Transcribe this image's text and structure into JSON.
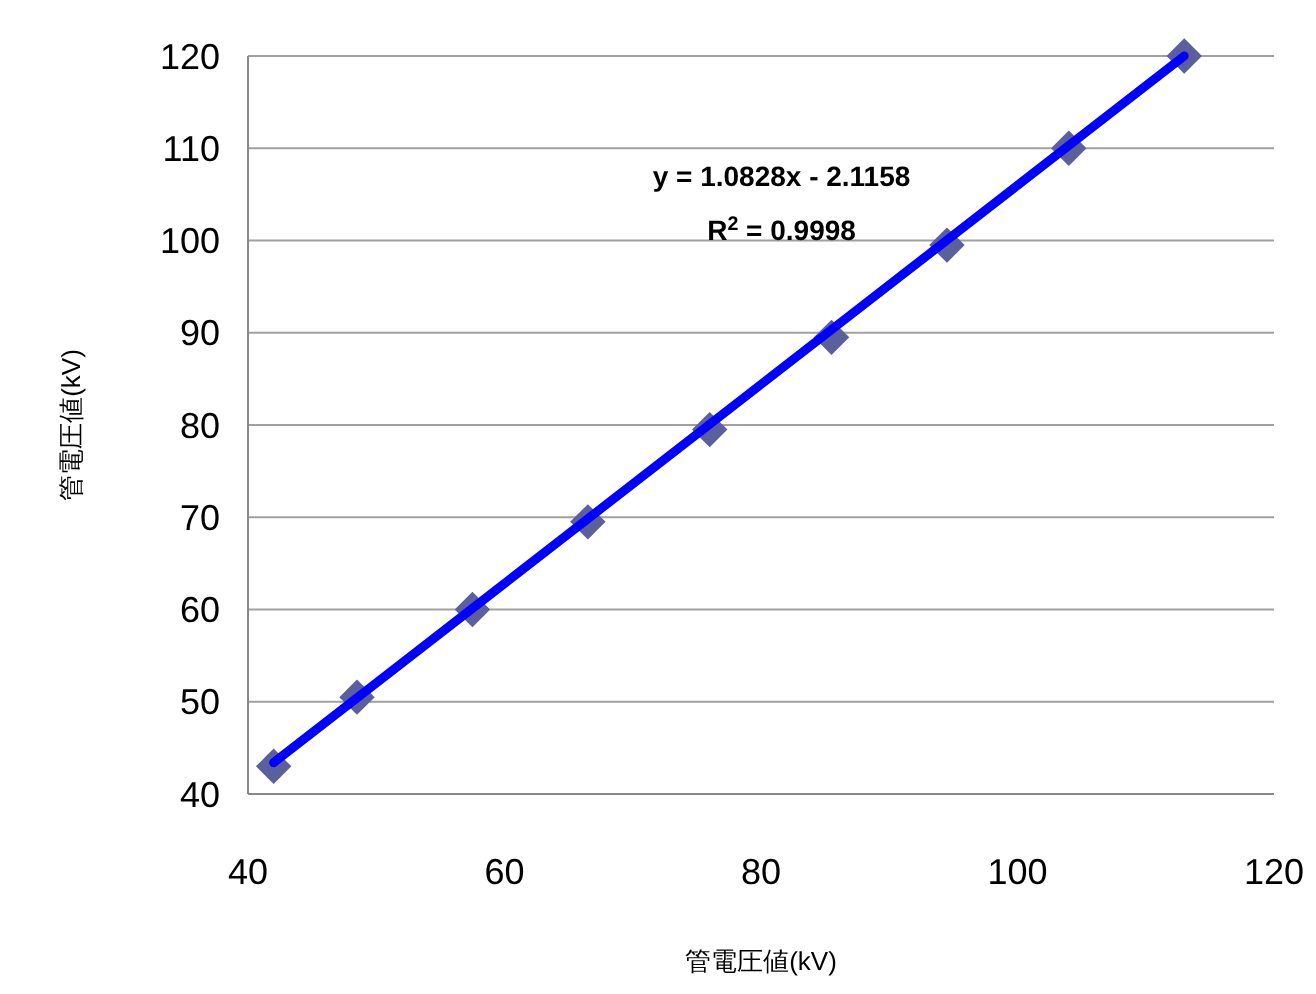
{
  "chart_data": {
    "type": "scatter",
    "xlabel": "管電圧値(kV)",
    "ylabel": "管電圧値(kV)",
    "annotations": [
      "y = 1.0828x - 2.1158",
      "R$^{2}$ = 0.9998"
    ],
    "series": [
      {
        "color": "#5b5f9c",
        "marker": "diamond",
        "x": [
          42,
          48.5,
          57.5,
          66.5,
          76,
          85.5,
          94.5,
          104,
          113
        ],
        "values": [
          43,
          50.5,
          60,
          69.5,
          79.5,
          89.5,
          99.5,
          110,
          120
        ]
      },
      {
        "type": "line",
        "color": "#0000ff",
        "marker": "none",
        "x": [
          42,
          113
        ],
        "values": [
          43.4,
          120
        ]
      }
    ],
    "xlim": [
      40,
      120
    ],
    "xticks": [
      40,
      60,
      80,
      100,
      120
    ],
    "ylim": [
      40,
      120
    ],
    "yticks": [
      40,
      50,
      60,
      70,
      80,
      90,
      100,
      110,
      120
    ],
    "grid": "y"
  }
}
